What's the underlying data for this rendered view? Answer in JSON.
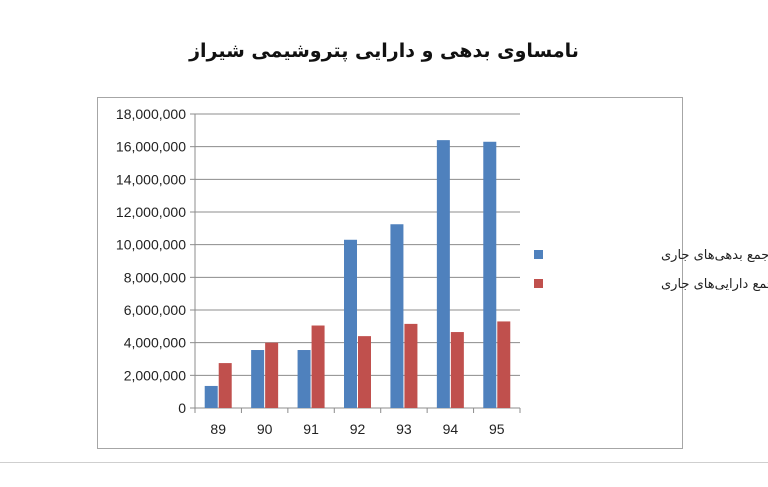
{
  "chart_data": {
    "type": "bar",
    "title": "نامساوی بدهی و دارایی پتروشیمی شیراز",
    "categories": [
      "89",
      "90",
      "91",
      "92",
      "93",
      "94",
      "95"
    ],
    "series": [
      {
        "name": "جمع بدهی‌های جاری",
        "color": "#4f81bd",
        "values": [
          1350000,
          3550000,
          3550000,
          10300000,
          11250000,
          16400000,
          16300000
        ]
      },
      {
        "name": "جمع دارایی‌های جاری",
        "color": "#c0504d",
        "values": [
          2750000,
          4000000,
          5050000,
          4400000,
          5150000,
          4650000,
          5300000
        ]
      }
    ],
    "ylim": [
      0,
      18000000
    ],
    "y_ticks": [
      "0",
      "2,000,000",
      "4,000,000",
      "6,000,000",
      "8,000,000",
      "10,000,000",
      "12,000,000",
      "14,000,000",
      "16,000,000",
      "18,000,000"
    ],
    "grid": true,
    "legend_position": "right"
  }
}
